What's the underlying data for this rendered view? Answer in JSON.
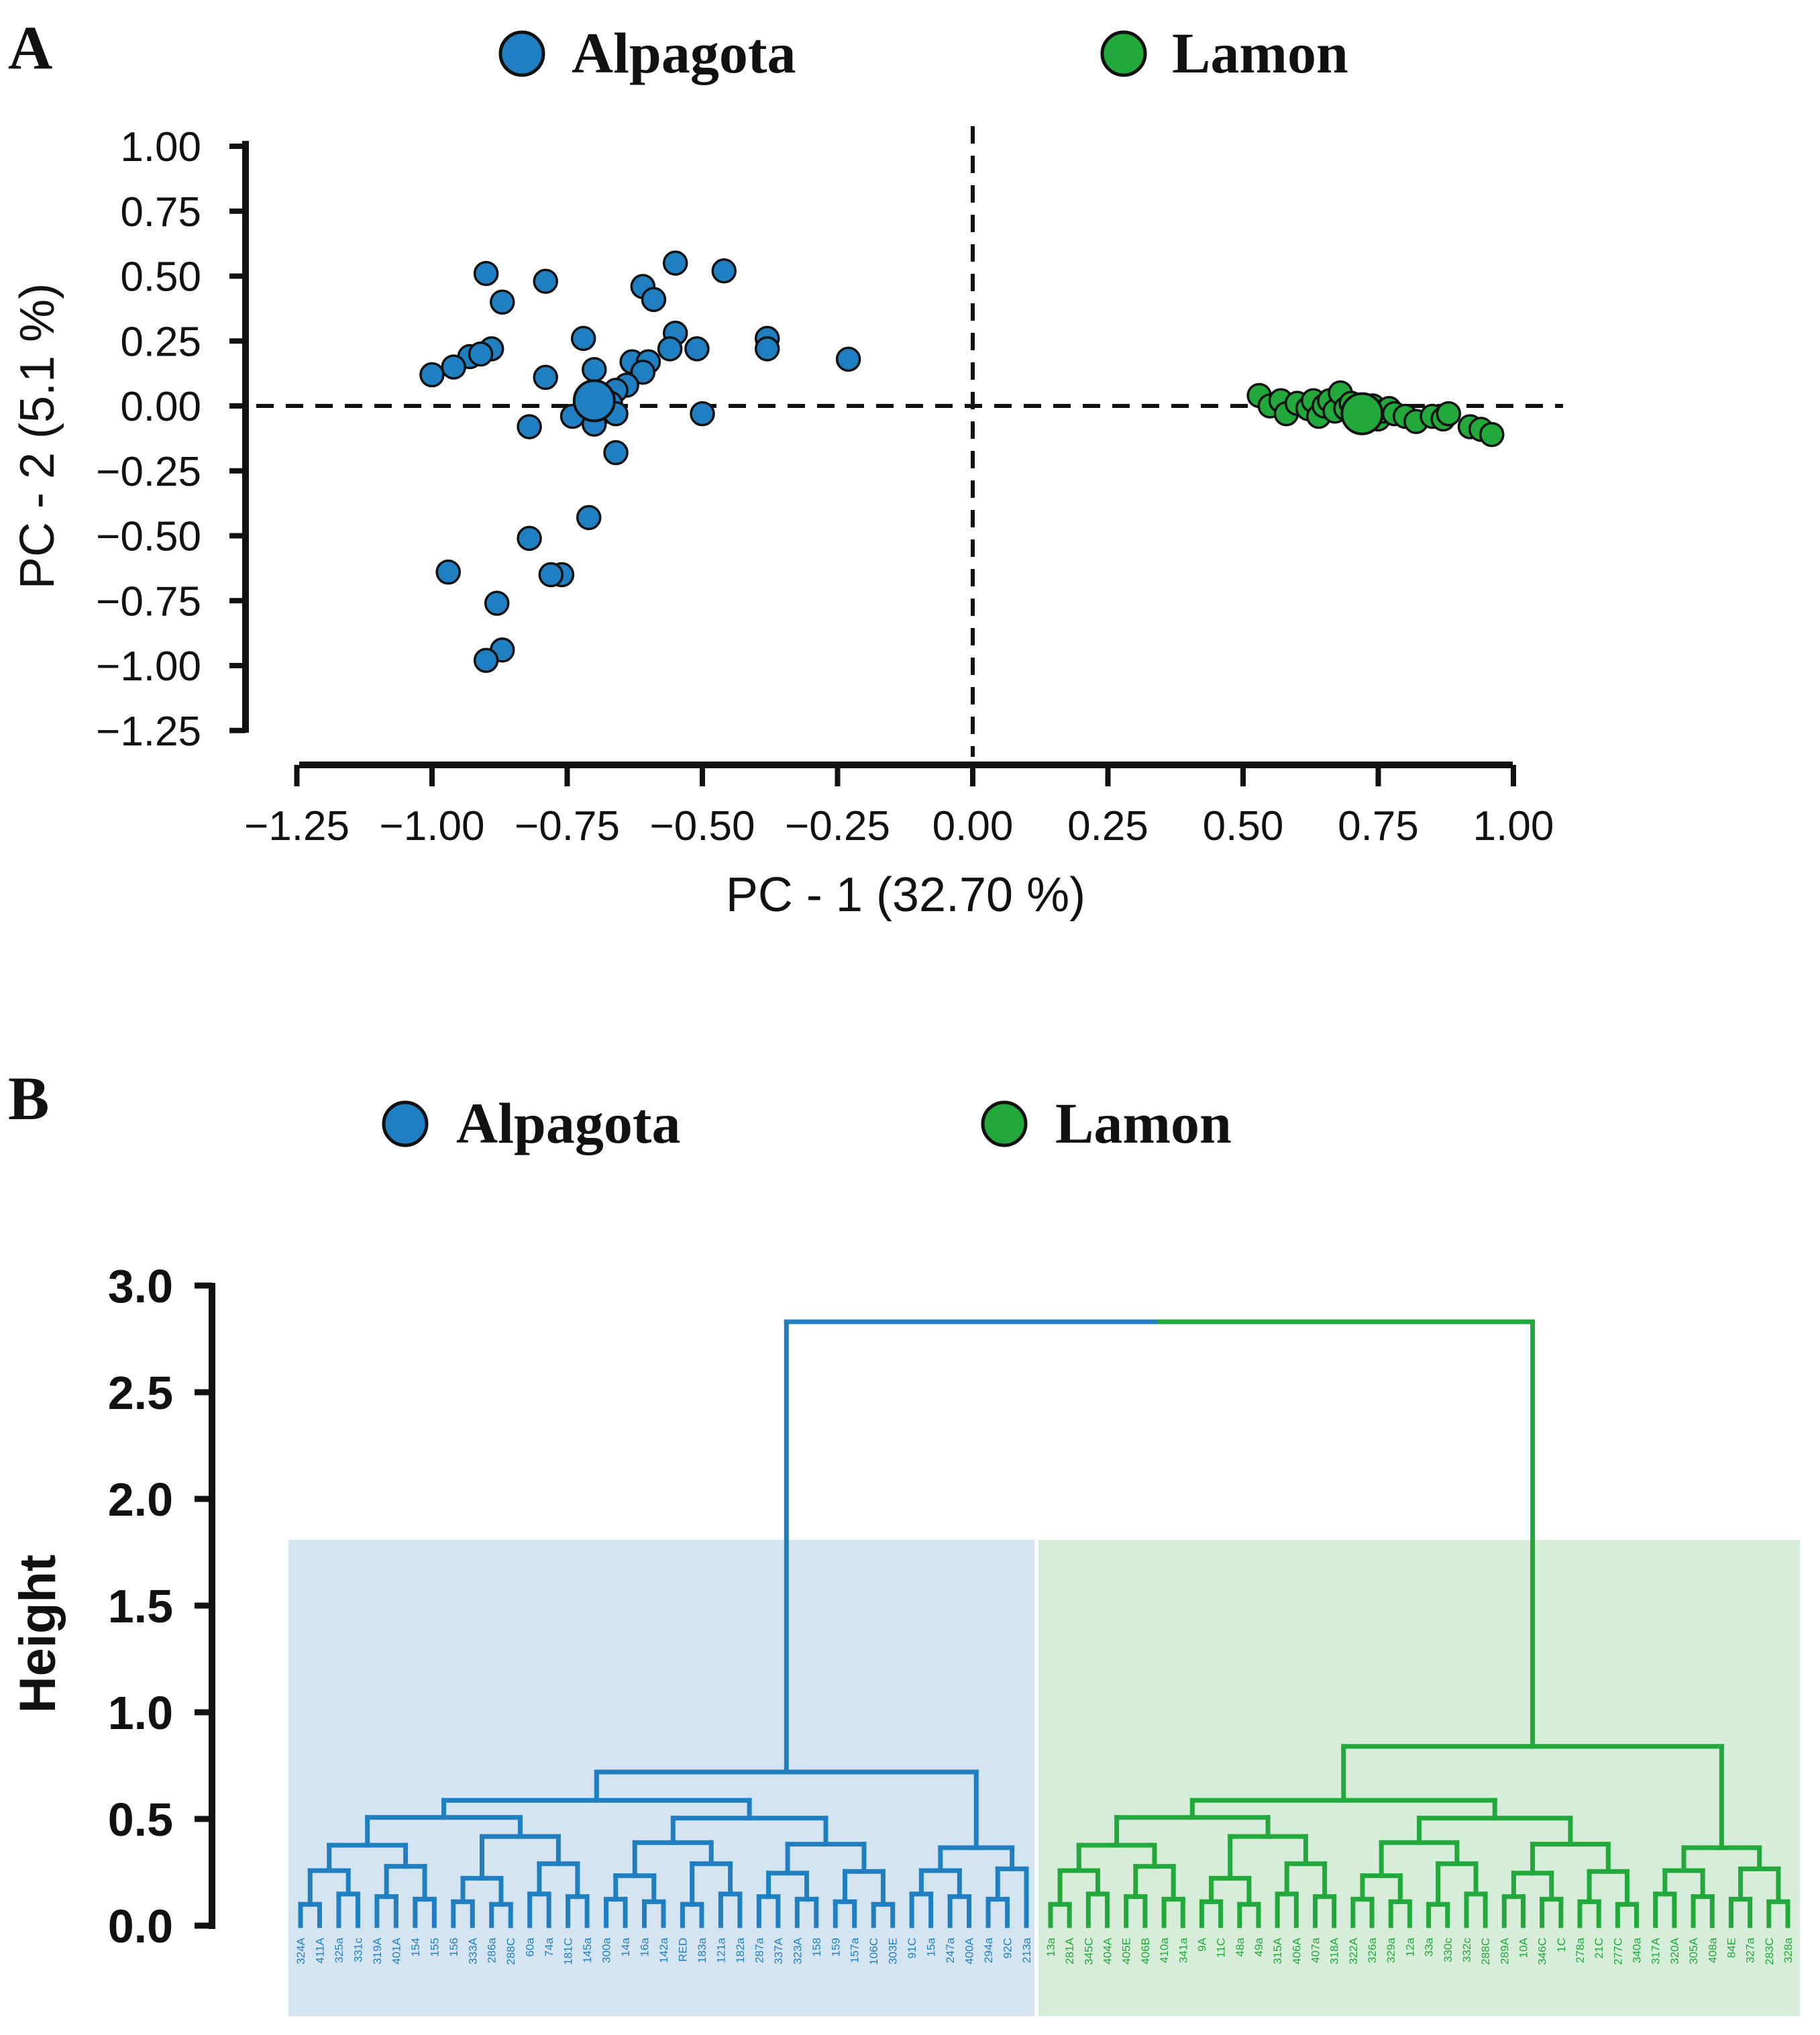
{
  "colors": {
    "alpagota": "#1f7fc1",
    "lamon": "#22a83b",
    "alpagota_bg": "#d4e5f1",
    "lamon_bg": "#d5edd9"
  },
  "chart_data": [
    {
      "panel": "A",
      "type": "scatter",
      "legend": [
        {
          "label": "Alpagota",
          "color": "#1f7fc1"
        },
        {
          "label": "Lamon",
          "color": "#22a83b"
        }
      ],
      "xlabel": "PC - 1 (32.70 %)",
      "ylabel": "PC - 2 (5.1 %)",
      "xlim": [
        -1.25,
        1.0
      ],
      "ylim": [
        -1.25,
        1.0
      ],
      "xticks": [
        "-1.25",
        "-1.00",
        "-0.75",
        "-0.50",
        "-0.25",
        "0.00",
        "0.25",
        "0.50",
        "0.75",
        "1.00"
      ],
      "yticks": [
        "1.00",
        "0.75",
        "0.50",
        "0.25",
        "0.00",
        "-0.25",
        "-0.50",
        "-0.75",
        "-1.00",
        "-1.25"
      ],
      "reference_lines": {
        "x": 0,
        "y": 0
      },
      "series": [
        {
          "name": "Alpagota",
          "color": "#1f7fc1",
          "centroid": [
            -0.7,
            0.02
          ],
          "points": [
            [
              -0.9,
              0.51
            ],
            [
              -0.79,
              0.48
            ],
            [
              -0.55,
              0.55
            ],
            [
              -0.46,
              0.52
            ],
            [
              -0.61,
              0.46
            ],
            [
              -0.59,
              0.41
            ],
            [
              -0.87,
              0.4
            ],
            [
              -0.38,
              0.26
            ],
            [
              -0.72,
              0.26
            ],
            [
              -0.55,
              0.28
            ],
            [
              -0.93,
              0.19
            ],
            [
              -0.89,
              0.22
            ],
            [
              -0.91,
              0.2
            ],
            [
              -0.96,
              0.15
            ],
            [
              -1.0,
              0.12
            ],
            [
              -0.51,
              0.22
            ],
            [
              -0.56,
              0.22
            ],
            [
              -0.38,
              0.22
            ],
            [
              -0.23,
              0.18
            ],
            [
              -0.63,
              0.17
            ],
            [
              -0.6,
              0.17
            ],
            [
              -0.7,
              0.14
            ],
            [
              -0.61,
              0.13
            ],
            [
              -0.79,
              0.11
            ],
            [
              -0.64,
              0.08
            ],
            [
              -0.66,
              0.06
            ],
            [
              -0.67,
              0.01
            ],
            [
              -0.69,
              -0.03
            ],
            [
              -0.66,
              -0.03
            ],
            [
              -0.74,
              -0.04
            ],
            [
              -0.82,
              -0.08
            ],
            [
              -0.7,
              -0.07
            ],
            [
              -0.5,
              -0.03
            ],
            [
              -0.66,
              -0.18
            ],
            [
              -0.71,
              -0.43
            ],
            [
              -0.82,
              -0.51
            ],
            [
              -0.97,
              -0.64
            ],
            [
              -0.76,
              -0.65
            ],
            [
              -0.78,
              -0.65
            ],
            [
              -0.88,
              -0.76
            ],
            [
              -0.87,
              -0.94
            ],
            [
              -0.9,
              -0.98
            ]
          ]
        },
        {
          "name": "Lamon",
          "color": "#22a83b",
          "centroid": [
            0.72,
            -0.03
          ],
          "points": [
            [
              0.53,
              0.04
            ],
            [
              0.55,
              0.0
            ],
            [
              0.57,
              0.02
            ],
            [
              0.58,
              -0.03
            ],
            [
              0.6,
              0.01
            ],
            [
              0.62,
              -0.01
            ],
            [
              0.63,
              0.02
            ],
            [
              0.64,
              -0.04
            ],
            [
              0.65,
              0.0
            ],
            [
              0.66,
              0.02
            ],
            [
              0.67,
              -0.02
            ],
            [
              0.68,
              0.05
            ],
            [
              0.69,
              -0.01
            ],
            [
              0.7,
              0.01
            ],
            [
              0.71,
              -0.03
            ],
            [
              0.73,
              -0.02
            ],
            [
              0.74,
              0.0
            ],
            [
              0.75,
              -0.05
            ],
            [
              0.76,
              -0.02
            ],
            [
              0.77,
              -0.01
            ],
            [
              0.78,
              -0.03
            ],
            [
              0.8,
              -0.04
            ],
            [
              0.82,
              -0.06
            ],
            [
              0.85,
              -0.04
            ],
            [
              0.87,
              -0.05
            ],
            [
              0.88,
              -0.03
            ],
            [
              0.92,
              -0.08
            ],
            [
              0.94,
              -0.09
            ],
            [
              0.96,
              -0.11
            ]
          ]
        }
      ]
    },
    {
      "panel": "B",
      "type": "dendrogram",
      "legend": [
        {
          "label": "Alpagota",
          "color": "#1f7fc1"
        },
        {
          "label": "Lamon",
          "color": "#22a83b"
        }
      ],
      "ylabel": "Height",
      "ylim": [
        0.0,
        3.0
      ],
      "yticks": [
        "3.0",
        "2.5",
        "2.0",
        "1.5",
        "1.0",
        "0.5",
        "0.0"
      ],
      "root_height": 2.83,
      "cluster_cut_height": 1.82,
      "clusters": [
        {
          "name": "Alpagota",
          "color": "#1f7fc1",
          "merge_height": 0.72,
          "leaves": [
            "324A",
            "411A",
            "325a",
            "331c",
            "319A",
            "401A",
            "154",
            "155",
            "156",
            "333A",
            "286a",
            "288C",
            "60a",
            "74a",
            "181C",
            "145a",
            "300a",
            "14a",
            "16a",
            "142a",
            "RED",
            "183a",
            "121a",
            "182a",
            "287a",
            "337A",
            "323A",
            "158",
            "159",
            "157a",
            "106C",
            "303E",
            "91C",
            "15a",
            "247a",
            "400A",
            "294a",
            "92C",
            "213a"
          ]
        },
        {
          "name": "Lamon",
          "color": "#22a83b",
          "merge_height": 0.84,
          "leaves": [
            "13a",
            "281A",
            "345C",
            "404A",
            "405E",
            "406B",
            "410a",
            "341a",
            "9A",
            "11C",
            "48a",
            "49a",
            "315A",
            "406A",
            "407a",
            "318A",
            "322A",
            "326a",
            "329a",
            "12a",
            "33a",
            "330c",
            "332c",
            "288C",
            "289A",
            "10A",
            "346C",
            "1C",
            "278a",
            "21C",
            "277C",
            "340a",
            "317A",
            "320A",
            "305A",
            "408a",
            "84E",
            "327a",
            "283C",
            "328a"
          ]
        }
      ]
    }
  ]
}
